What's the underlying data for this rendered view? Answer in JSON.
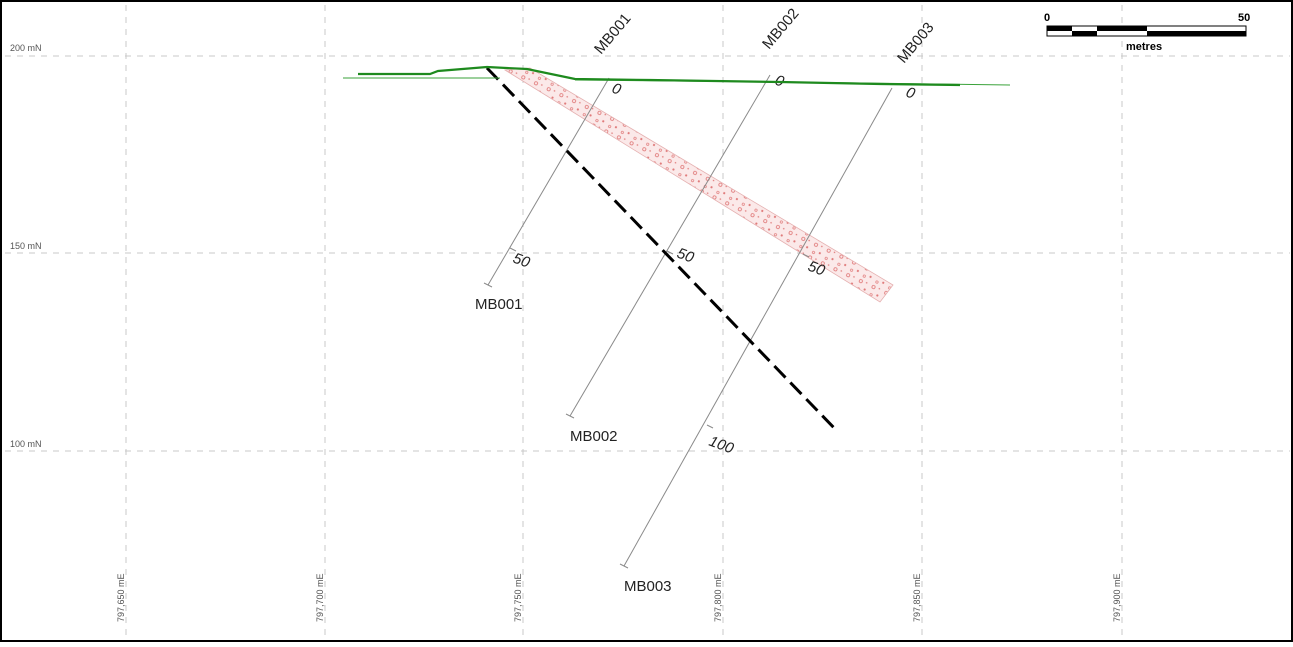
{
  "northing_labels": [
    "200 mN",
    "150 mN",
    "100 mN"
  ],
  "easting_labels": [
    "797,650 mE",
    "797,700 mE",
    "797,750 mE",
    "797,800 mE",
    "797,850 mE",
    "797,900 mE"
  ],
  "drillholes": [
    {
      "name": "MB001",
      "depth_labels": [
        "0",
        "50"
      ]
    },
    {
      "name": "MB002",
      "depth_labels": [
        "0",
        "50"
      ]
    },
    {
      "name": "MB003",
      "depth_labels": [
        "0",
        "50",
        "100"
      ]
    }
  ],
  "scale_bar": {
    "start_label": "0",
    "end_label": "50",
    "unit_label": "metres"
  },
  "colors": {
    "terrain": "#1e8a1e",
    "fault": "#000000",
    "ore_zone_fill": "#f7dcdc",
    "ore_zone_dots": "#e07a7a",
    "grid": "#c8c8c8"
  }
}
